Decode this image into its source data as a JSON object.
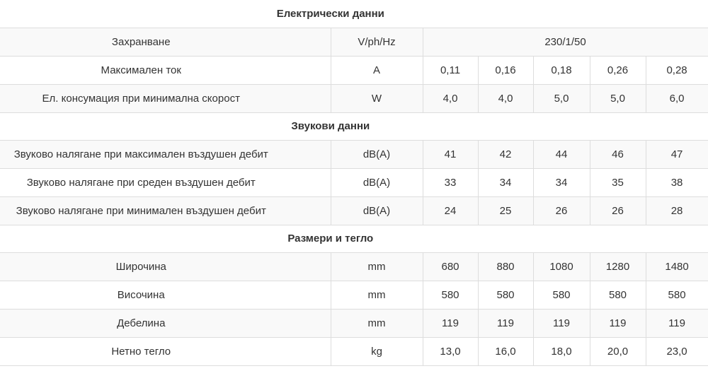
{
  "colors": {
    "background": "#ffffff",
    "stripe": "#f9f9f9",
    "border": "#dddddd",
    "text": "#333333"
  },
  "chart_data": {
    "type": "table",
    "title": "",
    "legend_position": "none",
    "grid": "light-borders",
    "column_roles": [
      "parameter",
      "unit",
      "model-1",
      "model-2",
      "model-3",
      "model-4",
      "model-5"
    ],
    "sections": [
      {
        "title": "Електрически данни",
        "rows": [
          {
            "label": "Захранване",
            "unit": "V/ph/Hz",
            "values": [
              "230/1/50"
            ],
            "spanned": true
          },
          {
            "label": "Максимален ток",
            "unit": "A",
            "values": [
              "0,11",
              "0,16",
              "0,18",
              "0,26",
              "0,28"
            ]
          },
          {
            "label": "Ел. консумация при минимална скорост",
            "unit": "W",
            "values": [
              "4,0",
              "4,0",
              "5,0",
              "5,0",
              "6,0"
            ]
          }
        ]
      },
      {
        "title": "Звукови данни",
        "rows": [
          {
            "label": "Звуково налягане при максимален въздушен дебит",
            "unit": "dB(A)",
            "values": [
              "41",
              "42",
              "44",
              "46",
              "47"
            ]
          },
          {
            "label": "Звуково налягане при среден въздушен дебит",
            "unit": "dB(A)",
            "values": [
              "33",
              "34",
              "34",
              "35",
              "38"
            ]
          },
          {
            "label": "Звуково налягане при минимален въздушен дебит",
            "unit": "dB(A)",
            "values": [
              "24",
              "25",
              "26",
              "26",
              "28"
            ]
          }
        ]
      },
      {
        "title": "Размери и тегло",
        "rows": [
          {
            "label": "Широчина",
            "unit": "mm",
            "values": [
              "680",
              "880",
              "1080",
              "1280",
              "1480"
            ]
          },
          {
            "label": "Височина",
            "unit": "mm",
            "values": [
              "580",
              "580",
              "580",
              "580",
              "580"
            ]
          },
          {
            "label": "Дебелина",
            "unit": "mm",
            "values": [
              "119",
              "119",
              "119",
              "119",
              "119"
            ]
          },
          {
            "label": "Нетно тегло",
            "unit": "kg",
            "values": [
              "13,0",
              "16,0",
              "18,0",
              "20,0",
              "23,0"
            ]
          }
        ]
      }
    ]
  }
}
